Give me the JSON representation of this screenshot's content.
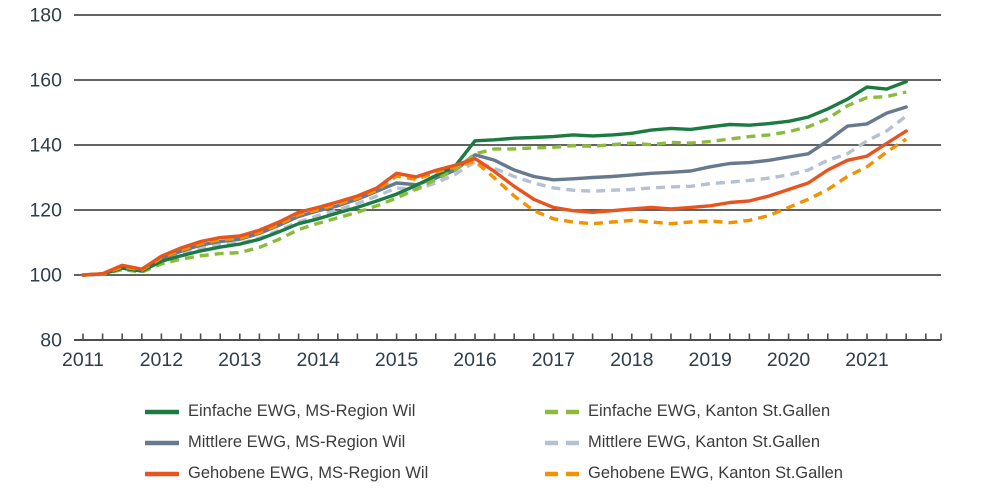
{
  "chart_data": {
    "type": "line",
    "title": "",
    "x_axis": {
      "unit": "quarter",
      "start_year": 2011,
      "tick_years": [
        "2011",
        "2012",
        "2013",
        "2014",
        "2015",
        "2016",
        "2017",
        "2018",
        "2019",
        "2020",
        "2021"
      ]
    },
    "y_axis": {
      "min": 80,
      "max": 180,
      "ticks": [
        80,
        100,
        120,
        140,
        160,
        180
      ]
    },
    "grid": "horizontal",
    "legend_position": "bottom",
    "axis_color": "#4d4d4d",
    "tick_label_color": "#2e3e4d",
    "legend_text_color": "#3c3c3c",
    "background": "#ffffff",
    "legend_columns": [
      [
        0,
        2,
        4
      ],
      [
        1,
        3,
        5
      ]
    ],
    "draw_order": [
      3,
      2,
      1,
      0,
      5,
      4
    ],
    "series": [
      {
        "name": "Einfache EWG, MS-Region Wil",
        "slug": "einfache-ewg-ms-region-wil",
        "color": "#1b7b42",
        "line_style": "solid",
        "values": [
          100,
          100.3,
          102.1,
          101.2,
          104.2,
          105.9,
          107.4,
          108.6,
          109.5,
          111,
          113.3,
          115.8,
          117.3,
          119.1,
          120.8,
          122.8,
          124.9,
          127.6,
          130.6,
          133.6,
          141.3,
          141.6,
          142.1,
          142.3,
          142.6,
          143.1,
          142.8,
          143.1,
          143.6,
          144.6,
          145.1,
          144.8,
          145.6,
          146.3,
          146.1,
          146.6,
          147.3,
          148.6,
          151.1,
          154.1,
          157.8,
          157.2,
          159.5
        ]
      },
      {
        "name": "Einfache EWG, Kanton St.Gallen",
        "slug": "einfache-ewg-kanton-st-gallen",
        "color": "#8abb3c",
        "line_style": "dashed",
        "values": [
          100,
          100.2,
          101.7,
          100.9,
          103.4,
          104.9,
          105.9,
          106.6,
          106.9,
          108.5,
          111,
          114,
          115.9,
          117.6,
          119.3,
          121.3,
          123.7,
          126.4,
          129.4,
          132.4,
          137.3,
          138.8,
          138.8,
          139.1,
          139.3,
          139.8,
          139.6,
          140.1,
          140.6,
          140.1,
          140.8,
          140.6,
          141.1,
          141.8,
          142.6,
          143.1,
          144.1,
          145.6,
          148.1,
          152.1,
          154.6,
          154.9,
          156.3
        ]
      },
      {
        "name": "Mittlere EWG, MS-Region Wil",
        "slug": "mittlere-ewg-ms-region-wil",
        "color": "#66798e",
        "line_style": "solid",
        "values": [
          100,
          100.3,
          102.3,
          101.3,
          105.2,
          107.3,
          109.2,
          110.3,
          111,
          112.8,
          115.3,
          118,
          119.8,
          121.3,
          123.3,
          125.8,
          128.3,
          127.8,
          129.8,
          132.3,
          137,
          135.3,
          132.3,
          130.3,
          129.3,
          129.6,
          130,
          130.3,
          130.8,
          131.3,
          131.6,
          132,
          133.3,
          134.3,
          134.6,
          135.3,
          136.3,
          137.3,
          141.3,
          145.8,
          146.5,
          149.8,
          151.7
        ]
      },
      {
        "name": "Mittlere EWG, Kanton St.Gallen",
        "slug": "mittlere-ewg-kanton-st-gallen",
        "color": "#b6c0d3",
        "line_style": "dashed",
        "values": [
          100,
          100.2,
          102,
          101.1,
          104.4,
          106.3,
          108.2,
          109.3,
          109.8,
          111.3,
          113.8,
          116.3,
          118.3,
          120,
          122,
          124.3,
          126.8,
          126.3,
          128.3,
          131,
          134.8,
          132.8,
          130.3,
          128.3,
          126.8,
          126.1,
          125.8,
          126.1,
          126.3,
          126.8,
          127.1,
          127.3,
          128.1,
          128.6,
          129.1,
          129.8,
          130.8,
          132.3,
          135.3,
          137.3,
          141.3,
          144.3,
          148.9
        ]
      },
      {
        "name": "Gehobene EWG, MS-Region Wil",
        "slug": "gehobene-ewg-ms-region-wil",
        "color": "#e8541e",
        "line_style": "solid",
        "values": [
          100,
          100.4,
          103,
          101.8,
          105.8,
          108.3,
          110.3,
          111.5,
          112,
          113.8,
          116.3,
          119.3,
          120.8,
          122.5,
          124.3,
          126.8,
          131.3,
          130.2,
          132.2,
          133.8,
          135.8,
          131.8,
          127.3,
          123.3,
          120.8,
          119.8,
          119.3,
          119.8,
          120.3,
          120.8,
          120.3,
          120.8,
          121.3,
          122.3,
          122.8,
          124.3,
          126.3,
          128.3,
          132.3,
          135.3,
          136.6,
          140.5,
          144.3
        ]
      },
      {
        "name": "Gehobene EWG, Kanton St.Gallen",
        "slug": "gehobene-ewg-kanton-st-gallen",
        "color": "#f39200",
        "line_style": "dashed",
        "values": [
          100,
          100.3,
          102.5,
          101.5,
          105.3,
          107.6,
          109.6,
          110.9,
          111.3,
          113.1,
          115.6,
          118.6,
          120.1,
          121.8,
          123.6,
          126.1,
          130.4,
          129.4,
          131.6,
          133.3,
          135,
          129.8,
          124.3,
          119.8,
          117.3,
          116.3,
          115.8,
          116.3,
          116.8,
          116.3,
          115.8,
          116.3,
          116.6,
          116.1,
          116.8,
          118.3,
          120.8,
          123.3,
          126.3,
          130.3,
          133.3,
          137.8,
          141.8
        ]
      }
    ]
  }
}
